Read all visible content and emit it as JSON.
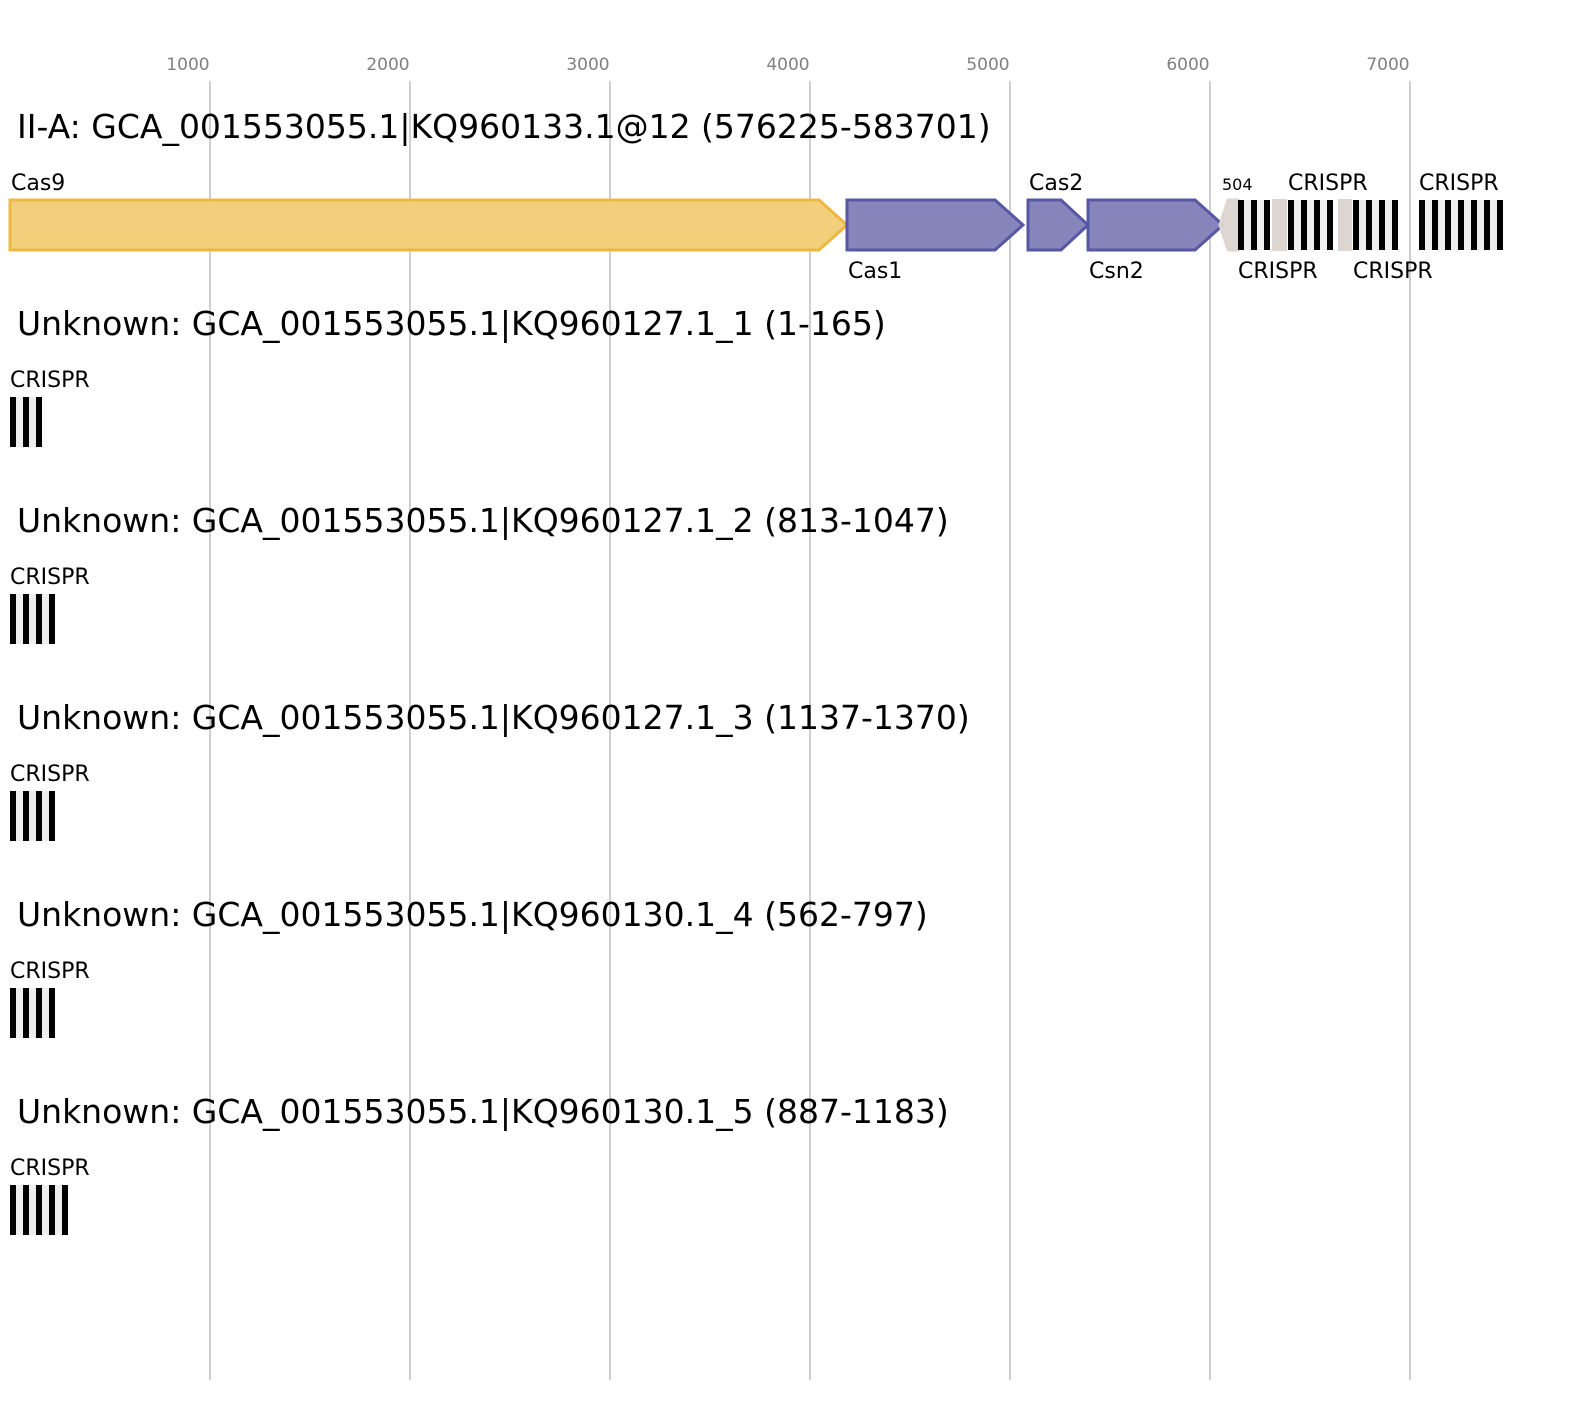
{
  "axis": {
    "ticks": [
      1000,
      2000,
      3000,
      4000,
      5000,
      6000,
      7000
    ],
    "grid_color": "#bfbfbf"
  },
  "colors": {
    "cas9_fill": "#f1cc73",
    "cas9_stroke": "#ecb842",
    "cas_fill": "#7f7fb9",
    "cas_stroke": "#5757a3",
    "other_fill": "#ddd5cf",
    "repeat": "#000000",
    "spacer": "#eeeeee"
  },
  "tracks": [
    {
      "title": "II-A: GCA_001553055.1|KQ960133.1@12 (576225-583701)",
      "genes": [
        {
          "name": "Cas9",
          "start": 0,
          "end": 4185,
          "strand": 1,
          "kind": "cas9",
          "label_pos": "above"
        },
        {
          "name": "Cas1",
          "start": 4185,
          "end": 5065,
          "strand": 1,
          "kind": "cas",
          "label_pos": "below"
        },
        {
          "name": "Cas2",
          "start": 5090,
          "end": 5390,
          "strand": 1,
          "kind": "cas",
          "label_pos": "above"
        },
        {
          "name": "Csn2",
          "start": 5390,
          "end": 6065,
          "strand": 1,
          "kind": "cas",
          "label_pos": "below"
        },
        {
          "name": "504",
          "start": 6050,
          "end": 6140,
          "strand": -1,
          "kind": "other",
          "label_pos": "above-small"
        }
      ],
      "crisprs": [
        {
          "name": "CRISPR",
          "start": 6140,
          "repeats": 3
        },
        {
          "name": "CRISPR",
          "start": 6390,
          "repeats": 4
        },
        {
          "name": "CRISPR",
          "start": 6715,
          "repeats": 4
        },
        {
          "name": "CRISPR",
          "start": 7045,
          "repeats": 7
        }
      ],
      "others": [
        {
          "start": 6310,
          "end": 6385
        },
        {
          "start": 6640,
          "end": 6710
        }
      ]
    },
    {
      "title": "Unknown: GCA_001553055.1|KQ960127.1_1 (1-165)",
      "genes": [],
      "crisprs": [
        {
          "name": "CRISPR",
          "start": 0,
          "repeats": 3
        }
      ],
      "others": []
    },
    {
      "title": "Unknown: GCA_001553055.1|KQ960127.1_2 (813-1047)",
      "genes": [],
      "crisprs": [
        {
          "name": "CRISPR",
          "start": 0,
          "repeats": 4
        }
      ],
      "others": []
    },
    {
      "title": "Unknown: GCA_001553055.1|KQ960127.1_3 (1137-1370)",
      "genes": [],
      "crisprs": [
        {
          "name": "CRISPR",
          "start": 0,
          "repeats": 4
        }
      ],
      "others": []
    },
    {
      "title": "Unknown: GCA_001553055.1|KQ960130.1_4 (562-797)",
      "genes": [],
      "crisprs": [
        {
          "name": "CRISPR",
          "start": 0,
          "repeats": 4
        }
      ],
      "others": []
    },
    {
      "title": "Unknown: GCA_001553055.1|KQ960130.1_5 (887-1183)",
      "genes": [],
      "crisprs": [
        {
          "name": "CRISPR",
          "start": 0,
          "repeats": 5
        }
      ],
      "others": []
    }
  ]
}
